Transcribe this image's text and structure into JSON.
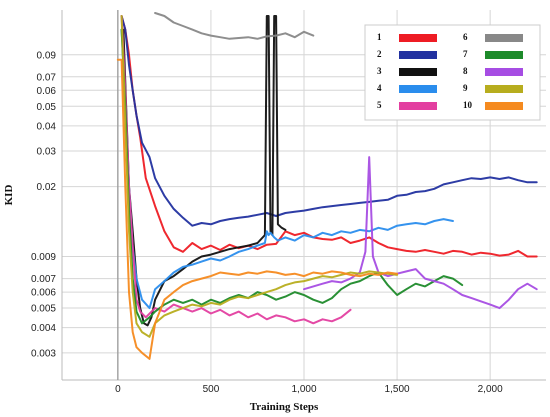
{
  "chart_data": {
    "type": "line",
    "title": "",
    "xlabel": "Training Steps",
    "ylabel": "KID",
    "xlim": [
      -300,
      2300
    ],
    "ylim": [
      0.0022,
      0.15
    ],
    "yscale": "log",
    "grid": true,
    "legend_position": "top-right",
    "x_ticks": [
      0,
      500,
      1000,
      1500,
      2000
    ],
    "x_tick_labels": [
      "0",
      "500",
      "1,000",
      "1,500",
      "2,000"
    ],
    "y_ticks": [
      0.003,
      0.004,
      0.005,
      0.006,
      0.007,
      0.009,
      0.02,
      0.03,
      0.04,
      0.05,
      0.06,
      0.07,
      0.09
    ],
    "y_tick_labels": [
      "0.003",
      "0.004",
      "0.005",
      "0.006",
      "0.007",
      "0.009",
      "0.02",
      "0.03",
      "0.04",
      "0.05",
      "0.06",
      "0.07",
      "0.09"
    ],
    "series": [
      {
        "name": "1",
        "color": "#ee1c24",
        "x": [
          20,
          40,
          60,
          80,
          100,
          120,
          150,
          200,
          250,
          300,
          350,
          400,
          450,
          500,
          550,
          600,
          650,
          700,
          750,
          800,
          850,
          900,
          950,
          1000,
          1050,
          1100,
          1150,
          1200,
          1250,
          1300,
          1350,
          1400,
          1450,
          1500,
          1550,
          1600,
          1650,
          1700,
          1750,
          1800,
          1850,
          1900,
          1950,
          2000,
          2050,
          2100,
          2150,
          2200,
          2250
        ],
        "y": [
          0.14,
          0.12,
          0.09,
          0.06,
          0.045,
          0.035,
          0.022,
          0.016,
          0.012,
          0.01,
          0.0095,
          0.0105,
          0.0098,
          0.0102,
          0.0097,
          0.0103,
          0.0099,
          0.0102,
          0.0098,
          0.0103,
          0.0104,
          0.012,
          0.0115,
          0.0118,
          0.0112,
          0.011,
          0.0109,
          0.0112,
          0.0105,
          0.0108,
          0.0112,
          0.0105,
          0.01,
          0.0098,
          0.0096,
          0.0095,
          0.0097,
          0.0095,
          0.0093,
          0.0096,
          0.0095,
          0.0092,
          0.0094,
          0.0093,
          0.0091,
          0.0092,
          0.0096,
          0.009,
          0.009
        ]
      },
      {
        "name": "2",
        "color": "#2231a0",
        "x": [
          20,
          40,
          60,
          80,
          100,
          130,
          170,
          200,
          250,
          300,
          350,
          400,
          450,
          500,
          550,
          600,
          650,
          700,
          750,
          800,
          850,
          900,
          950,
          1000,
          1050,
          1100,
          1150,
          1200,
          1250,
          1300,
          1350,
          1400,
          1450,
          1500,
          1550,
          1600,
          1650,
          1700,
          1750,
          1800,
          1850,
          1900,
          1950,
          2000,
          2050,
          2100,
          2150,
          2200,
          2250
        ],
        "y": [
          0.14,
          0.12,
          0.08,
          0.06,
          0.045,
          0.033,
          0.028,
          0.022,
          0.018,
          0.0155,
          0.014,
          0.0128,
          0.0132,
          0.013,
          0.0135,
          0.0138,
          0.014,
          0.0142,
          0.0145,
          0.0148,
          0.0143,
          0.0148,
          0.015,
          0.0152,
          0.0155,
          0.0158,
          0.016,
          0.0162,
          0.0164,
          0.0166,
          0.0168,
          0.017,
          0.0172,
          0.018,
          0.0182,
          0.0188,
          0.019,
          0.0195,
          0.0205,
          0.021,
          0.0215,
          0.022,
          0.0218,
          0.0222,
          0.0218,
          0.0222,
          0.0215,
          0.021,
          0.021
        ]
      },
      {
        "name": "3",
        "color": "#111111",
        "x": [
          30,
          60,
          80,
          100,
          120,
          140,
          160,
          180,
          200,
          250,
          300,
          350,
          400,
          450,
          500,
          550,
          600,
          650,
          700,
          750,
          790,
          800,
          810,
          820,
          830,
          840,
          850,
          860,
          880,
          900
        ],
        "y": [
          0.12,
          0.02,
          0.012,
          0.007,
          0.005,
          0.0042,
          0.0041,
          0.0045,
          0.0055,
          0.0068,
          0.0072,
          0.0078,
          0.0085,
          0.009,
          0.0092,
          0.0095,
          0.0098,
          0.01,
          0.0102,
          0.0105,
          0.0115,
          0.14,
          0.14,
          0.012,
          0.0115,
          0.14,
          0.14,
          0.013,
          0.0125,
          0.0122
        ]
      },
      {
        "name": "4",
        "color": "#2a8ded",
        "x": [
          20,
          40,
          60,
          80,
          100,
          130,
          170,
          200,
          250,
          300,
          350,
          400,
          450,
          500,
          550,
          600,
          650,
          700,
          750,
          790,
          800,
          810,
          820,
          840,
          860,
          880,
          900,
          950,
          1000,
          1050,
          1100,
          1150,
          1200,
          1250,
          1300,
          1350,
          1400,
          1450,
          1500,
          1550,
          1600,
          1650,
          1700,
          1750,
          1800
        ],
        "y": [
          0.12,
          0.05,
          0.02,
          0.01,
          0.007,
          0.0055,
          0.005,
          0.0062,
          0.0068,
          0.0075,
          0.008,
          0.0082,
          0.0085,
          0.0088,
          0.0086,
          0.009,
          0.0095,
          0.0098,
          0.0102,
          0.0105,
          0.012,
          0.0115,
          0.0118,
          0.0112,
          0.0108,
          0.011,
          0.0112,
          0.0108,
          0.0115,
          0.0112,
          0.0118,
          0.0115,
          0.012,
          0.0118,
          0.0122,
          0.012,
          0.0125,
          0.0122,
          0.0128,
          0.013,
          0.0132,
          0.013,
          0.0135,
          0.0138,
          0.0135
        ]
      },
      {
        "name": "5",
        "color": "#e33fa0",
        "x": [
          20,
          40,
          60,
          80,
          100,
          120,
          150,
          200,
          250,
          300,
          350,
          400,
          450,
          500,
          550,
          600,
          650,
          700,
          750,
          800,
          850,
          900,
          950,
          1000,
          1050,
          1100,
          1150,
          1200,
          1250
        ],
        "y": [
          0.14,
          0.06,
          0.02,
          0.01,
          0.0055,
          0.0048,
          0.0045,
          0.005,
          0.0048,
          0.0052,
          0.005,
          0.0048,
          0.005,
          0.0047,
          0.0049,
          0.0046,
          0.0048,
          0.0045,
          0.0047,
          0.0044,
          0.0046,
          0.0045,
          0.0043,
          0.0044,
          0.0042,
          0.0044,
          0.0043,
          0.0045,
          0.0049
        ]
      },
      {
        "name": "6",
        "color": "#888888",
        "x": [
          200,
          250,
          300,
          350,
          400,
          450,
          500,
          550,
          600,
          650,
          700,
          750,
          800,
          850,
          900,
          950,
          1000,
          1050
        ],
        "y": [
          0.145,
          0.14,
          0.13,
          0.125,
          0.12,
          0.115,
          0.112,
          0.11,
          0.108,
          0.109,
          0.11,
          0.108,
          0.111,
          0.112,
          0.115,
          0.11,
          0.117,
          0.112
        ]
      },
      {
        "name": "7",
        "color": "#1d8a2a",
        "x": [
          20,
          40,
          60,
          80,
          100,
          130,
          170,
          200,
          250,
          300,
          350,
          400,
          450,
          500,
          550,
          600,
          650,
          700,
          750,
          800,
          850,
          900,
          950,
          1000,
          1050,
          1100,
          1150,
          1200,
          1250,
          1300,
          1350,
          1400,
          1450,
          1500,
          1550,
          1600,
          1650,
          1700,
          1750,
          1800,
          1850
        ],
        "y": [
          0.12,
          0.05,
          0.015,
          0.007,
          0.0048,
          0.0042,
          0.0045,
          0.0048,
          0.0052,
          0.0055,
          0.0053,
          0.0055,
          0.0052,
          0.0055,
          0.0053,
          0.0056,
          0.0058,
          0.0056,
          0.006,
          0.0058,
          0.0055,
          0.0057,
          0.006,
          0.0058,
          0.0055,
          0.0053,
          0.0056,
          0.0062,
          0.0066,
          0.0068,
          0.0072,
          0.0075,
          0.0065,
          0.0058,
          0.0062,
          0.0066,
          0.0064,
          0.0068,
          0.0072,
          0.007,
          0.0065
        ]
      },
      {
        "name": "8",
        "color": "#a64de3",
        "x": [
          1000,
          1050,
          1100,
          1150,
          1200,
          1250,
          1300,
          1330,
          1350,
          1370,
          1400,
          1450,
          1500,
          1550,
          1600,
          1650,
          1700,
          1750,
          1800,
          1850,
          1900,
          1950,
          2000,
          2050,
          2100,
          2150,
          2200,
          2250
        ],
        "y": [
          0.0062,
          0.0064,
          0.0066,
          0.0068,
          0.0067,
          0.007,
          0.0075,
          0.0095,
          0.028,
          0.009,
          0.0075,
          0.0072,
          0.0074,
          0.0076,
          0.0078,
          0.007,
          0.0068,
          0.0066,
          0.0062,
          0.0058,
          0.0056,
          0.0054,
          0.0052,
          0.005,
          0.0055,
          0.0062,
          0.0066,
          0.0062
        ]
      },
      {
        "name": "9",
        "color": "#b7ad1e",
        "x": [
          20,
          40,
          60,
          80,
          100,
          130,
          170,
          200,
          250,
          300,
          350,
          400,
          450,
          500,
          550,
          600,
          650,
          700,
          750,
          800,
          850,
          900,
          950,
          1000,
          1050,
          1100,
          1150,
          1200,
          1250,
          1300,
          1350,
          1400,
          1450,
          1500
        ],
        "y": [
          0.14,
          0.04,
          0.012,
          0.006,
          0.0042,
          0.0038,
          0.0036,
          0.0042,
          0.0046,
          0.0048,
          0.005,
          0.0052,
          0.0051,
          0.0053,
          0.0052,
          0.0055,
          0.0057,
          0.0056,
          0.0058,
          0.006,
          0.0062,
          0.0065,
          0.0067,
          0.0068,
          0.007,
          0.0072,
          0.0071,
          0.0073,
          0.0075,
          0.0074,
          0.0076,
          0.0075,
          0.0074,
          0.0073
        ]
      },
      {
        "name": "10",
        "color": "#f58a1f",
        "x": [
          0,
          20,
          40,
          60,
          80,
          100,
          130,
          170,
          200,
          250,
          300,
          350,
          400,
          450,
          500,
          550,
          600,
          650,
          700,
          750,
          800,
          850,
          900,
          950,
          1000,
          1050,
          1100,
          1150,
          1200,
          1250,
          1300,
          1350,
          1400,
          1450,
          1500
        ],
        "y": [
          0.085,
          0.085,
          0.02,
          0.006,
          0.0038,
          0.0032,
          0.003,
          0.0028,
          0.0042,
          0.0055,
          0.006,
          0.0065,
          0.0068,
          0.007,
          0.0072,
          0.0075,
          0.0074,
          0.0073,
          0.0075,
          0.0074,
          0.0076,
          0.0075,
          0.0073,
          0.0074,
          0.0072,
          0.0075,
          0.0074,
          0.0076,
          0.0075,
          0.0073,
          0.0072,
          0.0074,
          0.0073,
          0.0075,
          0.0074
        ]
      }
    ]
  }
}
